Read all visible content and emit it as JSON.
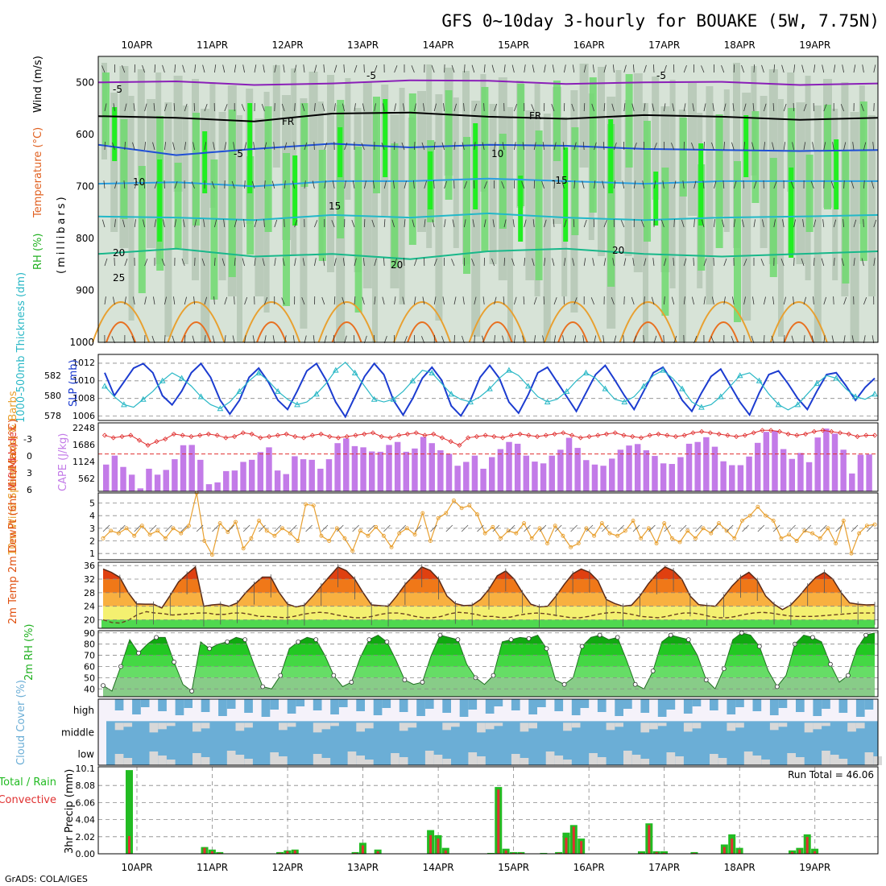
{
  "title": "GFS 0~10day 3-hourly for BOUAKE (5W, 7.75N)",
  "footer": "GrADS: COLA/IGES",
  "dates": [
    "10APR",
    "11APR",
    "12APR",
    "13APR",
    "14APR",
    "15APR",
    "16APR",
    "17APR",
    "18APR",
    "19APR"
  ],
  "colors": {
    "rh_light": "#d7e3d7",
    "rh_mid": "#b7c8b7",
    "rh_green": "#6fd96f",
    "rh_bright": "#22ee22",
    "slp": "#1c3cd0",
    "thickness": "#2ab8c6",
    "lifted_index": "#e03030",
    "cape": "#c37be8",
    "wind": "#e8a030",
    "rh_fill": "#20c020",
    "cloud": "#6baed6",
    "cloud_gap": "#d8d8d8",
    "precip_total": "#22bb22",
    "precip_conv": "#e03030"
  },
  "chart_data": [
    {
      "panel": "upper_air",
      "type": "heatmap",
      "ylabel_parts": [
        "RH (%)",
        "Temperature (°C)",
        "Wind (m/s)",
        "(millibars)"
      ],
      "yticks": [
        "500",
        "600",
        "700",
        "800",
        "900",
        "1000"
      ],
      "ylim": [
        1000,
        450
      ],
      "isotherm_labels": [
        "-5",
        "-5",
        "FR",
        "FR",
        "-5",
        "-5",
        "10",
        "10",
        "-15",
        "15",
        "20",
        "20",
        "20",
        "25"
      ],
      "isotherms": [
        {
          "name": "-5",
          "color": "#8a1fb8",
          "levels": [
            500,
            498,
            505,
            502,
            496,
            497,
            503,
            500,
            499,
            505,
            502
          ]
        },
        {
          "name": "FR",
          "color": "#000000",
          "levels": [
            565,
            568,
            575,
            560,
            558,
            566,
            570,
            563,
            566,
            572,
            568
          ]
        },
        {
          "name": "-5b",
          "color": "#1f4fd6",
          "levels": [
            620,
            640,
            628,
            618,
            625,
            620,
            622,
            628,
            630,
            632,
            630
          ]
        },
        {
          "name": "10",
          "color": "#2a9fe0",
          "levels": [
            695,
            692,
            700,
            690,
            690,
            685,
            690,
            695,
            690,
            690,
            690
          ]
        },
        {
          "name": "15",
          "color": "#22b8c8",
          "levels": [
            758,
            760,
            765,
            755,
            760,
            752,
            760,
            765,
            760,
            758,
            755
          ]
        },
        {
          "name": "20",
          "color": "#18b88a",
          "levels": [
            830,
            820,
            835,
            830,
            840,
            825,
            820,
            830,
            835,
            830,
            825
          ]
        }
      ]
    },
    {
      "panel": "slp_thickness",
      "type": "line",
      "ylabel": "SLP (mb)",
      "ylabel2": "1000-500mb Thickness (dm)",
      "yticks_left": [
        "582",
        "580",
        "578"
      ],
      "yticks_right": [
        "1012",
        "1010",
        "1008",
        "1006"
      ],
      "slp": [
        1011,
        1008.5,
        1010,
        1011.5,
        1012,
        1011,
        1008.5,
        1007.5,
        1009,
        1011,
        1012,
        1010.5,
        1008,
        1006.5,
        1008,
        1010.5,
        1011.5,
        1010,
        1008,
        1007,
        1009,
        1011.2,
        1012,
        1010.2,
        1007.8,
        1006.2,
        1008.4,
        1010.6,
        1012,
        1010.8,
        1008,
        1006.4,
        1008.2,
        1010.4,
        1011.6,
        1010.2,
        1007.4,
        1006.3,
        1008,
        1010.5,
        1011.8,
        1010.4,
        1007.8,
        1006.6,
        1008.6,
        1011,
        1011.6,
        1010,
        1008.4,
        1006.8,
        1008.8,
        1010.8,
        1011.8,
        1010.2,
        1008.5,
        1007,
        1009,
        1011,
        1011.6,
        1010,
        1008,
        1006.8,
        1008.8,
        1010.6,
        1011.4,
        1009.6,
        1007.8,
        1006.4,
        1008.8,
        1010.8,
        1011.2,
        1009.8,
        1008.2,
        1007,
        1009,
        1010.8,
        1011,
        1009.6,
        1008,
        1009.4,
        1010.4
      ],
      "thickness": [
        580.6,
        579.8,
        579.2,
        579,
        579.6,
        580.2,
        581,
        581.6,
        581.2,
        580.6,
        579.8,
        579.2,
        578.9,
        579.4,
        580.2,
        581,
        581.6,
        581,
        580.2,
        579.6,
        579.2,
        579.4,
        580,
        580.8,
        581.8,
        582.4,
        581.6,
        580.6,
        579.6,
        579.4,
        579.6,
        580.2,
        581,
        581.8,
        581.6,
        580.8,
        580,
        579.6,
        579.4,
        579.8,
        580.4,
        581.2,
        581.8,
        581.4,
        580.6,
        579.8,
        579.4,
        579.6,
        580.2,
        581,
        581.6,
        581.2,
        580.4,
        579.6,
        579.4,
        579.8,
        580.6,
        581.4,
        581.8,
        581.2,
        580.4,
        579.4,
        579,
        579.2,
        579.8,
        580.6,
        581.4,
        581.6,
        581,
        580,
        579.2,
        578.8,
        579.2,
        580,
        580.8,
        581.4,
        581.2,
        580.4,
        579.8,
        579.6,
        580
      ]
    },
    {
      "panel": "cape_li",
      "type": "bar",
      "ylabel": "CAPE (J/kg)",
      "ylabel2": "Lifted Index",
      "yticks_left": [
        "-3",
        "0",
        "3",
        "6"
      ],
      "yticks_right": [
        "2248",
        "1686",
        "1124",
        "562"
      ],
      "cape": [
        900,
        1200,
        820,
        560,
        100,
        760,
        560,
        720,
        1080,
        1550,
        1560,
        1060,
        240,
        300,
        680,
        700,
        990,
        1060,
        1320,
        1480,
        700,
        580,
        1180,
        1080,
        1060,
        760,
        1080,
        1620,
        1780,
        1520,
        1480,
        1340,
        1330,
        1560,
        1660,
        1330,
        1440,
        1830,
        1620,
        1380,
        1260,
        860,
        990,
        1200,
        760,
        1150,
        1420,
        1660,
        1600,
        1200,
        1000,
        940,
        1200,
        1400,
        1800,
        1460,
        1050,
        900,
        860,
        1100,
        1400,
        1540,
        1590,
        1380,
        1190,
        940,
        920,
        1150,
        1600,
        1660,
        1820,
        1500,
        1010,
        880,
        880,
        1170,
        1630,
        2000,
        2040,
        1420,
        1090,
        1290,
        980,
        1810,
        2110,
        1940,
        1400,
        600,
        1230,
        1240
      ],
      "lifted_index": [
        -3,
        -2.6,
        -2.8,
        -3,
        -2.2,
        -1.4,
        -2,
        -2.4,
        -3.2,
        -3,
        -2.8,
        -3,
        -3.2,
        -3,
        -2.6,
        -2.8,
        -3.4,
        -3.2,
        -2.6,
        -2.8,
        -3,
        -3.2,
        -2.8,
        -2.6,
        -3,
        -3.2,
        -2.8,
        -2.6,
        -2.8,
        -3,
        -3.2,
        -3.4,
        -2.8,
        -2.6,
        -3,
        -3.2,
        -3.4,
        -3,
        -3.2,
        -2.6,
        -2,
        -1.4,
        -2.6,
        -2.8,
        -3,
        -2.8,
        -2.6,
        -3,
        -3.2,
        -3,
        -2.8,
        -3,
        -3.2,
        -3.4,
        -3,
        -2.6,
        -2.8,
        -3,
        -3.2,
        -3.4,
        -3,
        -2.8,
        -2.6,
        -3,
        -3.2,
        -3,
        -2.8,
        -3,
        -3.4,
        -3.6,
        -3.4,
        -3.2,
        -3,
        -2.8,
        -3,
        -3.4,
        -3.8,
        -3.8,
        -3.6,
        -3.2,
        -3,
        -3.2,
        -3.6,
        -3.8,
        -3.6,
        -3.4,
        -3.2,
        -2.8,
        -3,
        -3
      ]
    },
    {
      "panel": "wind10m",
      "type": "line",
      "ylabel": "10m Wind Speed (m/s) & Barbs",
      "yticks": [
        "5",
        "4",
        "3",
        "2",
        "1"
      ],
      "ylim": [
        0.5,
        5.8
      ],
      "values": [
        2.2,
        2.8,
        2.6,
        3.0,
        2.4,
        3.2,
        2.5,
        2.8,
        2.2,
        3.0,
        2.6,
        3.2,
        5.8,
        2.0,
        0.9,
        3.4,
        2.7,
        3.5,
        1.4,
        2.2,
        3.6,
        2.8,
        2.4,
        3.0,
        2.6,
        2.0,
        4.9,
        4.8,
        2.4,
        2.0,
        3.0,
        2.2,
        1.2,
        2.8,
        2.4,
        3.1,
        2.4,
        1.5,
        2.6,
        3.0,
        2.5,
        4.2,
        2.0,
        3.8,
        4.2,
        5.2,
        4.6,
        4.8,
        4.1,
        2.6,
        3.1,
        2.2,
        2.8,
        2.6,
        3.4,
        2.2,
        3.0,
        1.8,
        3.2,
        2.4,
        1.5,
        1.8,
        3.0,
        2.4,
        3.4,
        2.6,
        2.4,
        2.8,
        3.6,
        2.2,
        3.0,
        1.8,
        3.4,
        2.2,
        1.9,
        2.8,
        2.2,
        3.0,
        2.6,
        3.4,
        2.8,
        2.2,
        3.6,
        4.0,
        4.7,
        4.0,
        3.6,
        2.2,
        2.5,
        2.0,
        2.8,
        2.6,
        2.2,
        3.0,
        1.8,
        3.6,
        1.0,
        2.6,
        3.2,
        3.3
      ]
    },
    {
      "panel": "temperature",
      "type": "area",
      "ylabel": "2m Temp 2m DewPt (6hr Min/Max) (°C)",
      "yticks": [
        "36",
        "32",
        "28",
        "24",
        "20"
      ],
      "ylim": [
        17.5,
        37
      ],
      "temp": [
        35,
        34,
        32.5,
        28,
        24.7,
        24.6,
        24.6,
        23.5,
        27.2,
        31.2,
        33.5,
        35.6,
        24,
        24.4,
        24.6,
        24,
        25,
        28,
        30.5,
        32.6,
        32.6,
        28,
        24.6,
        23.8,
        24.3,
        27,
        30,
        32.8,
        35.6,
        34.5,
        32,
        28,
        24.4,
        24.2,
        24,
        27,
        30.4,
        33,
        35.6,
        34.6,
        32,
        27,
        24.8,
        24.2,
        24.3,
        26,
        29,
        33,
        34.4,
        32,
        28,
        24.6,
        23.8,
        24,
        27,
        30.5,
        33.6,
        35,
        34,
        31.5,
        26,
        24.8,
        24,
        24.3,
        27,
        30.6,
        33.5,
        35.6,
        34.5,
        32,
        27,
        24.5,
        24.2,
        24,
        26.8,
        30,
        32.5,
        34,
        31.6,
        27,
        24.6,
        23,
        24.4,
        27,
        30,
        32.6,
        34,
        32,
        28,
        25,
        24.6,
        24.4,
        24.5
      ],
      "dewpoint": [
        20,
        19.2,
        19,
        20,
        21.6,
        22.4,
        22,
        21.8,
        21.4,
        21.6,
        21.8,
        22,
        22,
        21.6,
        21.6,
        22,
        22,
        21.6,
        21,
        21,
        20.8,
        20.6,
        21,
        21.6,
        22,
        22.2,
        22,
        21.4,
        21,
        20.6,
        20.6,
        21,
        21.6,
        22,
        22,
        21.6,
        21,
        20.6,
        20.6,
        21,
        21.8,
        22.2,
        22,
        21.6,
        21,
        21,
        20.6,
        20.8,
        21.4,
        21.8,
        22,
        21.8,
        21.4,
        21,
        20.6,
        20.6,
        21,
        21.6,
        22,
        22.2,
        22,
        21.6,
        21,
        20.8,
        20.6,
        21,
        21.6,
        22,
        22,
        21.6,
        21,
        20.6,
        20.6,
        21,
        21.6,
        22,
        22.2,
        22,
        21.6,
        21.2,
        21,
        21,
        21,
        21.2,
        21.4,
        21.6,
        21.8,
        22,
        22,
        22
      ]
    },
    {
      "panel": "rh2m",
      "type": "area",
      "ylabel": "2m RH (%)",
      "yticks": [
        "90",
        "80",
        "70",
        "60",
        "50",
        "40"
      ],
      "ylim": [
        33,
        92
      ],
      "values": [
        43,
        38,
        60,
        84,
        72,
        80,
        86,
        86,
        64,
        44,
        38,
        82,
        76,
        80,
        82,
        86,
        84,
        62,
        42,
        40,
        52,
        76,
        82,
        86,
        84,
        70,
        52,
        42,
        46,
        68,
        84,
        88,
        82,
        66,
        48,
        44,
        46,
        70,
        88,
        86,
        84,
        62,
        50,
        44,
        52,
        82,
        84,
        86,
        85,
        88,
        76,
        48,
        44,
        50,
        78,
        86,
        88,
        84,
        86,
        66,
        44,
        40,
        56,
        82,
        88,
        86,
        84,
        70,
        48,
        40,
        58,
        84,
        90,
        88,
        78,
        56,
        42,
        52,
        80,
        88,
        86,
        82,
        62,
        46,
        52,
        76,
        88,
        90
      ]
    },
    {
      "panel": "cloud_cover",
      "type": "heatmap",
      "ylabel": "Cloud Cover (%)",
      "rows": [
        "high",
        "middle",
        "low"
      ]
    },
    {
      "panel": "precip",
      "type": "bar",
      "ylabel": "3hr Precip (mm)",
      "legend": [
        "Total / Rain",
        "Convective"
      ],
      "yticks": [
        "10.1",
        "8.08",
        "6.06",
        "4.04",
        "2.02",
        "0.00"
      ],
      "ylim": [
        0,
        10.1
      ],
      "run_total_label": "Run Total = 46.06",
      "bars": [
        {
          "day": 0.0,
          "total": 9.9,
          "conv": 2.1
        },
        {
          "day": 1.0,
          "total": 0.8,
          "conv": 0.7
        },
        {
          "day": 1.1,
          "total": 0.5,
          "conv": 0.3
        },
        {
          "day": 1.2,
          "total": 0.2,
          "conv": 0.1
        },
        {
          "day": 2.0,
          "total": 0.2,
          "conv": 0.1
        },
        {
          "day": 2.1,
          "total": 0.4,
          "conv": 0.3
        },
        {
          "day": 2.2,
          "total": 0.5,
          "conv": 0.4
        },
        {
          "day": 3.0,
          "total": 0.2,
          "conv": 0.1
        },
        {
          "day": 3.1,
          "total": 1.3,
          "conv": 1.0
        },
        {
          "day": 3.3,
          "total": 0.5,
          "conv": 0.3
        },
        {
          "day": 4.0,
          "total": 2.8,
          "conv": 2.2
        },
        {
          "day": 4.1,
          "total": 2.2,
          "conv": 1.8
        },
        {
          "day": 4.2,
          "total": 0.7,
          "conv": 0.4
        },
        {
          "day": 4.8,
          "total": 0.1,
          "conv": 0.0
        },
        {
          "day": 4.9,
          "total": 7.9,
          "conv": 7.6
        },
        {
          "day": 5.0,
          "total": 0.6,
          "conv": 0.4
        },
        {
          "day": 5.1,
          "total": 0.2,
          "conv": 0.1
        },
        {
          "day": 5.2,
          "total": 0.2,
          "conv": 0.1
        },
        {
          "day": 5.5,
          "total": 0.1,
          "conv": 0.0
        },
        {
          "day": 5.7,
          "total": 0.2,
          "conv": 0.1
        },
        {
          "day": 5.8,
          "total": 2.5,
          "conv": 1.9
        },
        {
          "day": 5.9,
          "total": 3.4,
          "conv": 3.2
        },
        {
          "day": 6.0,
          "total": 1.8,
          "conv": 1.5
        },
        {
          "day": 6.8,
          "total": 0.3,
          "conv": 0.1
        },
        {
          "day": 6.9,
          "total": 3.6,
          "conv": 3.4
        },
        {
          "day": 7.0,
          "total": 0.3,
          "conv": 0.2
        },
        {
          "day": 7.1,
          "total": 0.3,
          "conv": 0.1
        },
        {
          "day": 7.5,
          "total": 0.2,
          "conv": 0.1
        },
        {
          "day": 7.9,
          "total": 1.1,
          "conv": 0.8
        },
        {
          "day": 8.0,
          "total": 2.3,
          "conv": 1.8
        },
        {
          "day": 8.1,
          "total": 0.7,
          "conv": 0.5
        },
        {
          "day": 8.8,
          "total": 0.4,
          "conv": 0.2
        },
        {
          "day": 8.9,
          "total": 0.7,
          "conv": 0.5
        },
        {
          "day": 9.0,
          "total": 2.3,
          "conv": 2.0
        },
        {
          "day": 9.1,
          "total": 0.6,
          "conv": 0.3
        }
      ]
    }
  ]
}
